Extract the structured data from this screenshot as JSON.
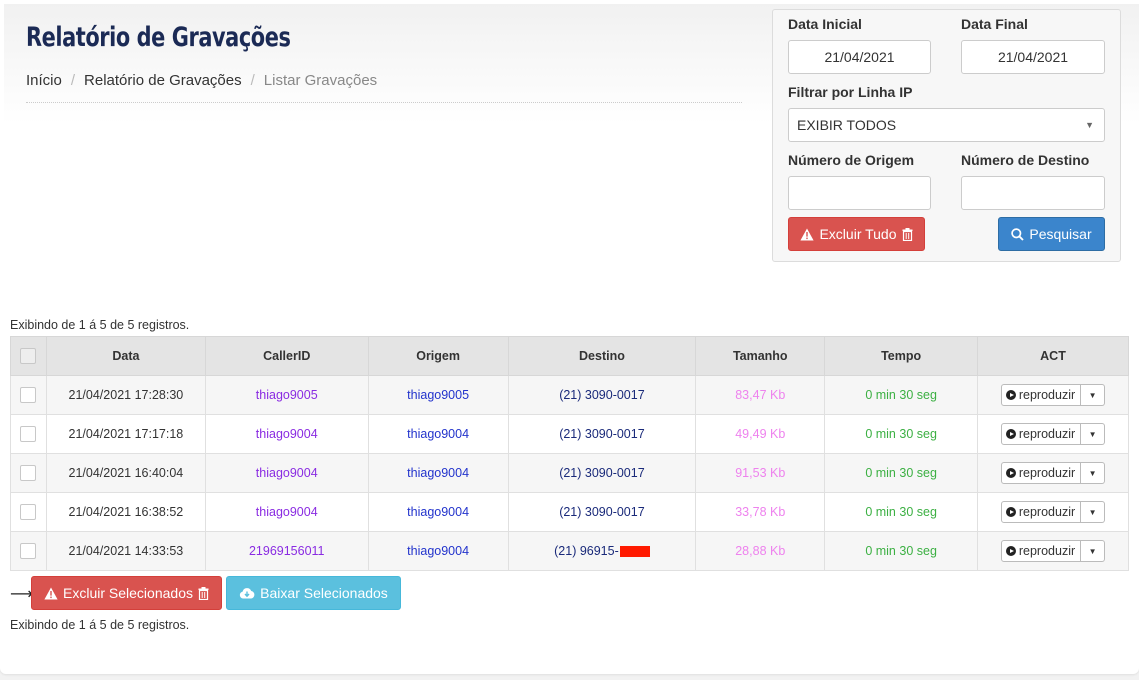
{
  "page": {
    "title": "Relatório de Gravações",
    "breadcrumb": {
      "home": "Início",
      "section": "Relatório de Gravações",
      "current": "Listar Gravações",
      "separator": "/"
    }
  },
  "filters": {
    "data_inicial_label": "Data Inicial",
    "data_inicial_value": "21/04/2021",
    "data_final_label": "Data Final",
    "data_final_value": "21/04/2021",
    "linha_ip_label": "Filtrar por Linha IP",
    "linha_ip_value": "EXIBIR TODOS",
    "origem_label": "Número de Origem",
    "origem_value": "",
    "destino_label": "Número de Destino",
    "destino_value": "",
    "excluir_tudo_label": "Excluir Tudo",
    "pesquisar_label": "Pesquisar"
  },
  "records_info": "Exibindo de 1 á 5 de 5 registros.",
  "table": {
    "headers": {
      "data": "Data",
      "callerid": "CallerID",
      "origem": "Origem",
      "destino": "Destino",
      "tamanho": "Tamanho",
      "tempo": "Tempo",
      "act": "ACT"
    },
    "rows": [
      {
        "data": "21/04/2021 17:28:30",
        "callerid": "thiago9005",
        "origem": "thiago9005",
        "destino": "(21) 3090-0017",
        "tamanho": "83,47 Kb",
        "tempo_min": "0 min",
        "tempo_seg": "30 seg",
        "act": "reproduzir"
      },
      {
        "data": "21/04/2021 17:17:18",
        "callerid": "thiago9004",
        "origem": "thiago9004",
        "destino": "(21) 3090-0017",
        "tamanho": "49,49 Kb",
        "tempo_min": "0 min",
        "tempo_seg": "30 seg",
        "act": "reproduzir"
      },
      {
        "data": "21/04/2021 16:40:04",
        "callerid": "thiago9004",
        "origem": "thiago9004",
        "destino": "(21) 3090-0017",
        "tamanho": "91,53 Kb",
        "tempo_min": "0 min",
        "tempo_seg": "30 seg",
        "act": "reproduzir"
      },
      {
        "data": "21/04/2021 16:38:52",
        "callerid": "thiago9004",
        "origem": "thiago9004",
        "destino": "(21) 3090-0017",
        "tamanho": "33,78 Kb",
        "tempo_min": "0 min",
        "tempo_seg": "30 seg",
        "act": "reproduzir"
      },
      {
        "data": "21/04/2021 14:33:53",
        "callerid": "21969156011",
        "origem": "thiago9004",
        "destino": "(21) 96915-",
        "tamanho": "28,88 Kb",
        "tempo_min": "0 min",
        "tempo_seg": "30 seg",
        "act": "reproduzir"
      }
    ]
  },
  "footer": {
    "excluir_selecionados_label": "Excluir Selecionados",
    "baixar_selecionados_label": "Baixar Selecionados"
  },
  "colors": {
    "danger": "#d9534f",
    "primary": "#3b85cc",
    "info": "#5bc0de",
    "title": "#1b2a55"
  }
}
